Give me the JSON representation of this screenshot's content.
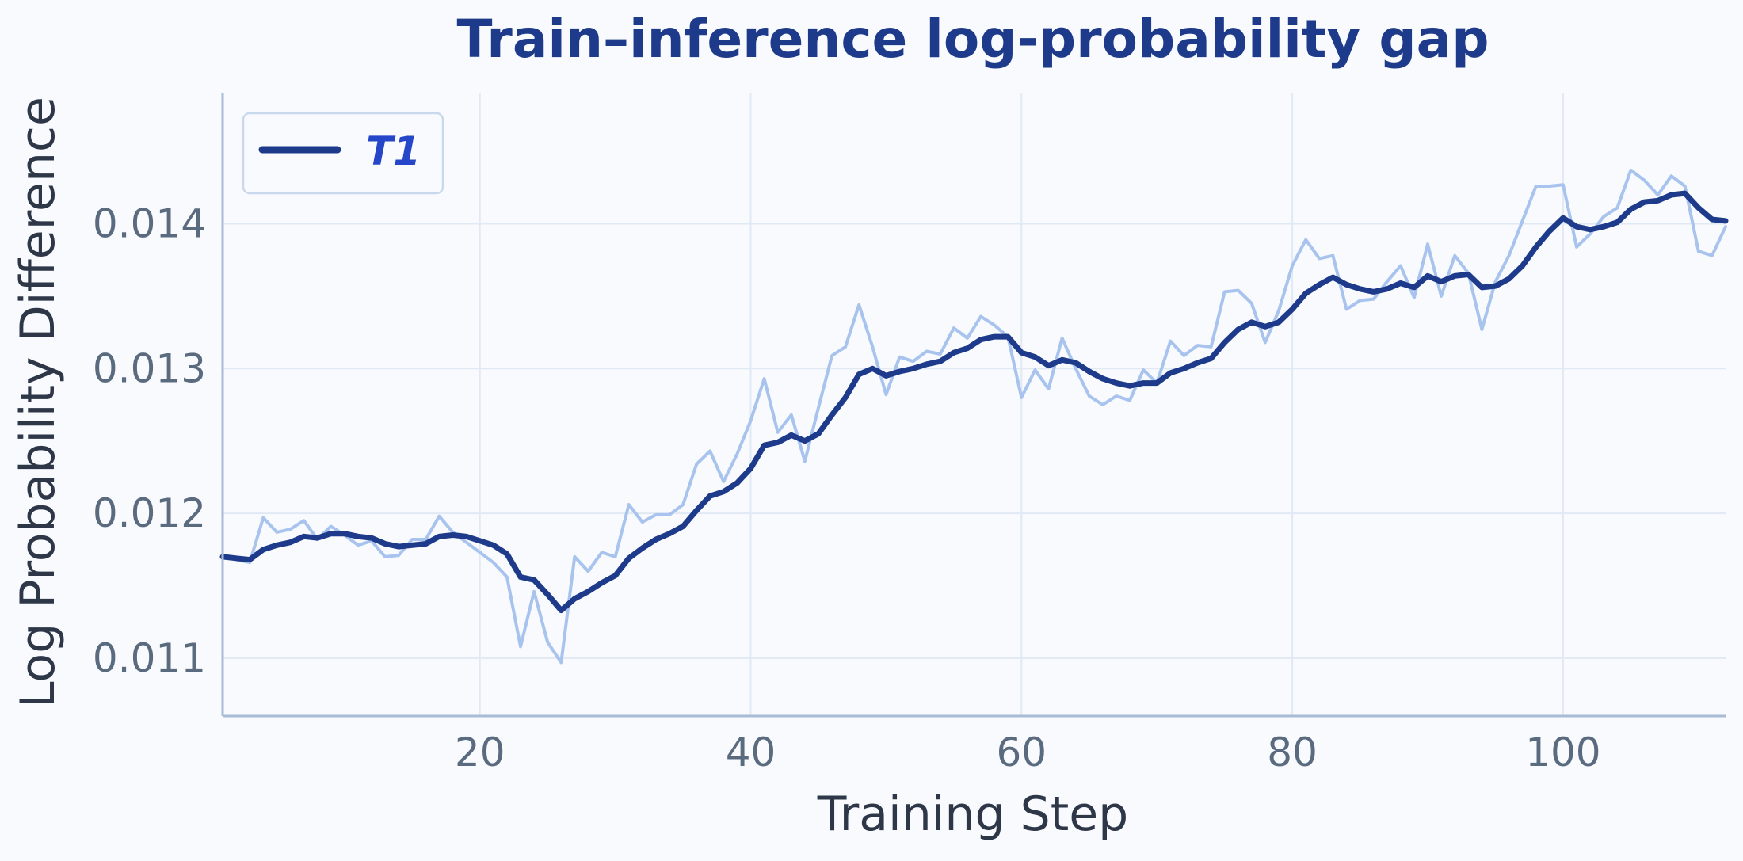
{
  "chart_data": {
    "type": "line",
    "title": "Train–inference log-probability gap",
    "xlabel": "Training Step",
    "ylabel": "Log Probability Difference",
    "xlim": [
      1,
      112
    ],
    "ylim": [
      0.0106,
      0.0149
    ],
    "xticks": [
      20,
      40,
      60,
      80,
      100
    ],
    "yticks": [
      0.011,
      0.012,
      0.013,
      0.014
    ],
    "ytick_labels": [
      "0.011",
      "0.012",
      "0.013",
      "0.014"
    ],
    "grid": true,
    "legend": {
      "placement": "top-left",
      "entries": [
        "T1"
      ]
    },
    "colors": {
      "raw": "#a8c4ee",
      "smoothed": "#1e3a8a",
      "title": "#1e3a8a",
      "legend_text": "#2546c8",
      "axis": "#a9bcd6",
      "grid": "#e1e9f4"
    },
    "series": [
      {
        "name": "T1",
        "style": "smoothed",
        "x": [
          1,
          2,
          3,
          4,
          5,
          6,
          7,
          8,
          9,
          10,
          11,
          12,
          13,
          14,
          15,
          16,
          17,
          18,
          19,
          20,
          21,
          22,
          23,
          24,
          25,
          26,
          27,
          28,
          29,
          30,
          31,
          32,
          33,
          34,
          35,
          36,
          37,
          38,
          39,
          40,
          41,
          42,
          43,
          44,
          45,
          46,
          47,
          48,
          49,
          50,
          51,
          52,
          53,
          54,
          55,
          56,
          57,
          58,
          59,
          60,
          61,
          62,
          63,
          64,
          65,
          66,
          67,
          68,
          69,
          70,
          71,
          72,
          73,
          74,
          75,
          76,
          77,
          78,
          79,
          80,
          81,
          82,
          83,
          84,
          85,
          86,
          87,
          88,
          89,
          90,
          91,
          92,
          93,
          94,
          95,
          96,
          97,
          98,
          99,
          100,
          101,
          102,
          103,
          104,
          105,
          106,
          107,
          108,
          109,
          110,
          111,
          112
        ],
        "values": [
          0.0117,
          0.01169,
          0.01168,
          0.01175,
          0.01178,
          0.0118,
          0.01184,
          0.01183,
          0.01186,
          0.01186,
          0.01184,
          0.01183,
          0.01179,
          0.01177,
          0.01178,
          0.01179,
          0.01184,
          0.01185,
          0.01184,
          0.01181,
          0.01178,
          0.01172,
          0.01156,
          0.01154,
          0.01144,
          0.01133,
          0.01141,
          0.01146,
          0.01152,
          0.01157,
          0.01169,
          0.01176,
          0.01182,
          0.01186,
          0.01191,
          0.01202,
          0.01212,
          0.01215,
          0.01221,
          0.01231,
          0.01247,
          0.01249,
          0.01254,
          0.0125,
          0.01255,
          0.01268,
          0.0128,
          0.01296,
          0.013,
          0.01295,
          0.01298,
          0.013,
          0.01303,
          0.01305,
          0.01311,
          0.01314,
          0.0132,
          0.01322,
          0.01322,
          0.01311,
          0.01308,
          0.01302,
          0.01306,
          0.01304,
          0.01298,
          0.01293,
          0.0129,
          0.01288,
          0.0129,
          0.0129,
          0.01297,
          0.013,
          0.01304,
          0.01307,
          0.01318,
          0.01327,
          0.01332,
          0.01329,
          0.01332,
          0.01341,
          0.01352,
          0.01358,
          0.01363,
          0.01358,
          0.01355,
          0.01353,
          0.01355,
          0.01359,
          0.01356,
          0.01364,
          0.0136,
          0.01364,
          0.01365,
          0.01356,
          0.01357,
          0.01362,
          0.01371,
          0.01384,
          0.01395,
          0.01404,
          0.01398,
          0.01396,
          0.01398,
          0.01401,
          0.0141,
          0.01415,
          0.01416,
          0.0142,
          0.01421,
          0.01411,
          0.01403,
          0.01402
        ]
      },
      {
        "name": "",
        "style": "raw",
        "x": [
          1,
          2,
          3,
          4,
          5,
          6,
          7,
          8,
          9,
          10,
          11,
          12,
          13,
          14,
          15,
          16,
          17,
          18,
          19,
          20,
          21,
          22,
          23,
          24,
          25,
          26,
          27,
          28,
          29,
          30,
          31,
          32,
          33,
          34,
          35,
          36,
          37,
          38,
          39,
          40,
          41,
          42,
          43,
          44,
          45,
          46,
          47,
          48,
          49,
          50,
          51,
          52,
          53,
          54,
          55,
          56,
          57,
          58,
          59,
          60,
          61,
          62,
          63,
          64,
          65,
          66,
          67,
          68,
          69,
          70,
          71,
          72,
          73,
          74,
          75,
          76,
          77,
          78,
          79,
          80,
          81,
          82,
          83,
          84,
          85,
          86,
          87,
          88,
          89,
          90,
          91,
          92,
          93,
          94,
          95,
          96,
          97,
          98,
          99,
          100,
          101,
          102,
          103,
          104,
          105,
          106,
          107,
          108,
          109,
          110,
          111,
          112
        ],
        "values": [
          0.0117,
          0.01168,
          0.01166,
          0.01197,
          0.01187,
          0.01189,
          0.01195,
          0.01182,
          0.01191,
          0.01185,
          0.01178,
          0.01181,
          0.0117,
          0.01171,
          0.01182,
          0.01182,
          0.01198,
          0.01187,
          0.0118,
          0.01173,
          0.01166,
          0.01156,
          0.01108,
          0.01146,
          0.01111,
          0.01097,
          0.0117,
          0.0116,
          0.01173,
          0.0117,
          0.01206,
          0.01194,
          0.01199,
          0.01199,
          0.01206,
          0.01234,
          0.01243,
          0.01222,
          0.01241,
          0.01264,
          0.01293,
          0.01256,
          0.01268,
          0.01236,
          0.01273,
          0.01309,
          0.01315,
          0.01344,
          0.01315,
          0.01282,
          0.01308,
          0.01305,
          0.01312,
          0.0131,
          0.01328,
          0.01321,
          0.01336,
          0.0133,
          0.01322,
          0.0128,
          0.01299,
          0.01286,
          0.01321,
          0.013,
          0.01281,
          0.01275,
          0.01281,
          0.01278,
          0.01299,
          0.0129,
          0.01319,
          0.01309,
          0.01316,
          0.01315,
          0.01353,
          0.01354,
          0.01345,
          0.01318,
          0.0134,
          0.01371,
          0.01389,
          0.01376,
          0.01378,
          0.01341,
          0.01347,
          0.01348,
          0.0136,
          0.01371,
          0.01349,
          0.01386,
          0.0135,
          0.01378,
          0.01366,
          0.01327,
          0.0136,
          0.01378,
          0.01402,
          0.01426,
          0.01426,
          0.01427,
          0.01384,
          0.01393,
          0.01405,
          0.01411,
          0.01437,
          0.0143,
          0.0142,
          0.01433,
          0.01426,
          0.01381,
          0.01378,
          0.01398
        ]
      }
    ]
  }
}
